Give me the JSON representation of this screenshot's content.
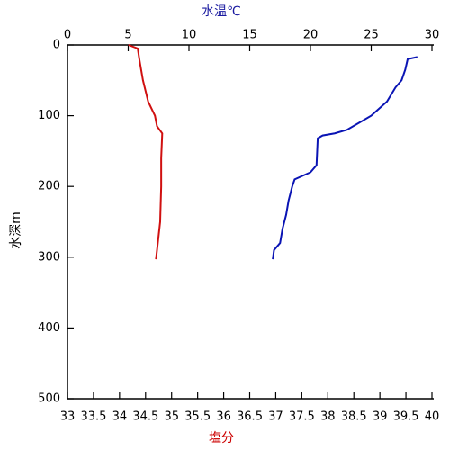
{
  "chart_data": {
    "type": "line",
    "xlabel": "塩分",
    "xlabel_color": "#cc0000",
    "x2label": "水温℃",
    "x2label_color": "#1a1aa0",
    "ylabel": "水深m",
    "xlim": [
      33,
      40
    ],
    "xticks": [
      33,
      33.5,
      34,
      34.5,
      35,
      35.5,
      36,
      36.5,
      37,
      37.5,
      38,
      38.5,
      39,
      39.5,
      40
    ],
    "x2lim": [
      0,
      30
    ],
    "x2ticks": [
      0,
      5,
      10,
      15,
      20,
      25,
      30
    ],
    "ylim": [
      0,
      500
    ],
    "yticks": [
      0,
      100,
      200,
      300,
      400,
      500
    ],
    "y_inverted": true,
    "series": [
      {
        "color": "#d01010",
        "xaxis": "x",
        "x": [
          34.17,
          34.35,
          34.38,
          34.45,
          34.55,
          34.68,
          34.72,
          34.82,
          34.8,
          34.8,
          34.78,
          34.75,
          34.72,
          34.7
        ],
        "values": [
          0,
          5,
          20,
          50,
          80,
          100,
          115,
          125,
          160,
          200,
          250,
          270,
          290,
          303
        ]
      },
      {
        "color": "#0a14b4",
        "xaxis": "x2",
        "x": [
          28.8,
          28.0,
          27.8,
          27.5,
          27.0,
          26.3,
          25.0,
          24.0,
          23.0,
          22.0,
          21.0,
          20.6,
          20.5,
          20.0,
          18.7,
          18.5,
          18.2,
          18.0,
          17.7,
          17.5,
          17.0,
          16.9
        ],
        "values": [
          17,
          20,
          35,
          50,
          60,
          80,
          100,
          110,
          120,
          125,
          128,
          132,
          170,
          180,
          190,
          200,
          220,
          240,
          260,
          280,
          290,
          303
        ]
      }
    ]
  }
}
